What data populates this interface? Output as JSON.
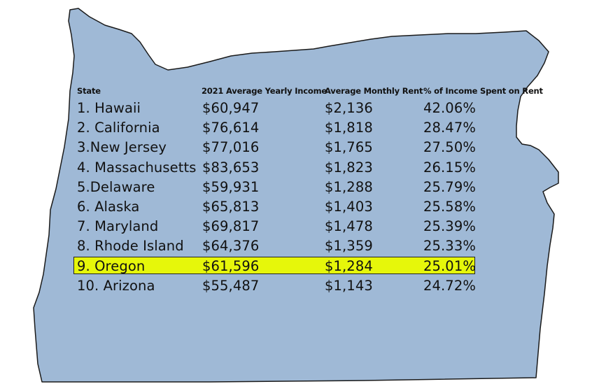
{
  "colors": {
    "state_fill": "#9fb9d6",
    "state_outline": "#1a1a1a",
    "highlight": "#e6f70a"
  },
  "map_shape": "oregon-state-outline",
  "table": {
    "headers": [
      "State",
      "2021 Average Yearly Income",
      "Average Monthly Rent",
      "% of Income Spent on Rent"
    ],
    "rows": [
      [
        "1. Hawaii",
        "$60,947",
        "$2,136",
        "42.06%"
      ],
      [
        "2. California",
        "$76,614",
        "$1,818",
        "28.47%"
      ],
      [
        "3.New Jersey",
        "$77,016",
        "$1,765",
        "27.50%"
      ],
      [
        "4. Massachusetts",
        "$83,653",
        "$1,823",
        "26.15%"
      ],
      [
        "5.Delaware",
        "$59,931",
        "$1,288",
        "25.79%"
      ],
      [
        "6. Alaska",
        "$65,813",
        "$1,403",
        "25.58%"
      ],
      [
        "7. Maryland",
        "$69,817",
        "$1,478",
        "25.39%"
      ],
      [
        "8. Rhode Island",
        "$64,376",
        "$1,359",
        "25.33%"
      ],
      [
        "9. Oregon",
        "$61,596",
        "$1,284",
        "25.01%"
      ],
      [
        "10. Arizona",
        "$55,487",
        "$1,143",
        "24.72%"
      ]
    ],
    "highlighted_row": 8
  }
}
